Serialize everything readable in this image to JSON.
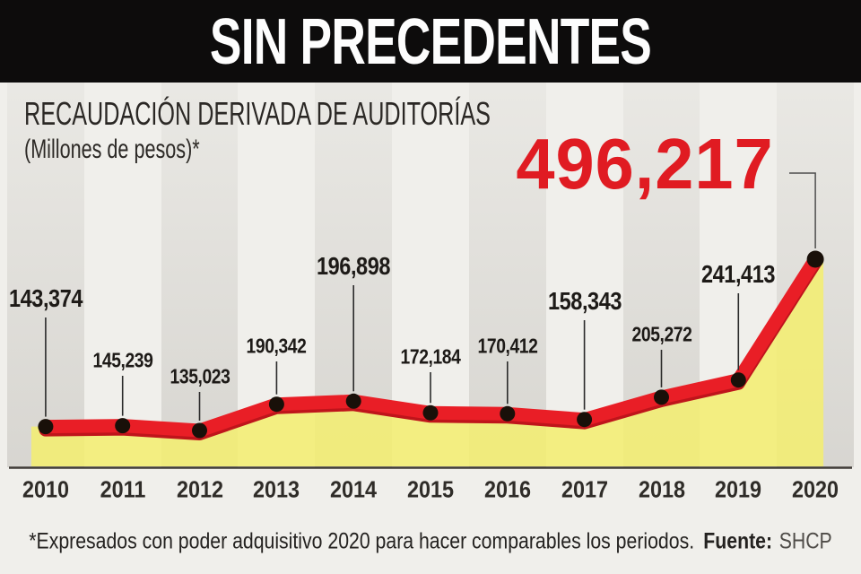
{
  "header": {
    "title": "SIN PRECEDENTES"
  },
  "chart": {
    "title": "RECAUDACIÓN DERIVADA DE AUDITORÍAS",
    "unit_note": "(Millones de pesos)*"
  },
  "chart_data": {
    "type": "area",
    "title": "RECAUDACIÓN DERIVADA DE AUDITORÍAS",
    "ylabel": "Millones de pesos (poder adquisitivo 2020)",
    "categories": [
      "2010",
      "2011",
      "2012",
      "2013",
      "2014",
      "2015",
      "2016",
      "2017",
      "2018",
      "2019",
      "2020"
    ],
    "values": [
      143374,
      145239,
      135023,
      190342,
      196898,
      172184,
      170412,
      158343,
      205272,
      241413,
      496217
    ],
    "value_labels": [
      "143,374",
      "145,239",
      "135,023",
      "190,342",
      "196,898",
      "172,184",
      "170,412",
      "158,343",
      "205,272",
      "241,413",
      "496,217"
    ],
    "highlight_index": 10,
    "highlight_value_label": "496,217",
    "legend": "none",
    "grid": "alternating vertical bands",
    "colors": {
      "line": "#e91e26",
      "line_shadow": "#bf141b",
      "area": "rgba(244,238,112,0.87)",
      "dot": "#191009",
      "leader": "#2a2a2a",
      "highlight_leader": "#4d4d4d",
      "baseline": "#403c38",
      "highlight_text": "#e01b22"
    }
  },
  "footer": {
    "note": "*Expresados con poder adquisitivo 2020 para hacer comparables los periodos.",
    "source_label": "Fuente:",
    "source_value": "SHCP"
  }
}
